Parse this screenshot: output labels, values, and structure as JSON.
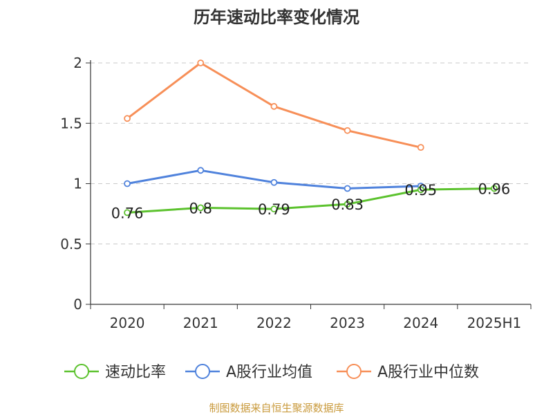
{
  "chart_data": {
    "type": "line",
    "title": "历年速动比率变化情况",
    "categories": [
      "2020",
      "2021",
      "2022",
      "2023",
      "2024",
      "2025H1"
    ],
    "ylim": [
      0,
      2
    ],
    "yticks": [
      "0",
      "0.5",
      "1",
      "1.5",
      "2"
    ],
    "grid": true,
    "legend_position": "bottom",
    "series": [
      {
        "name": "速动比率",
        "color": "#5cc22e",
        "values": [
          0.76,
          0.8,
          0.79,
          0.83,
          0.95,
          0.96
        ],
        "labels": [
          "0.76",
          "0.8",
          "0.79",
          "0.83",
          "0.95",
          "0.96"
        ]
      },
      {
        "name": "A股行业均值",
        "color": "#4f82dc",
        "values": [
          1.0,
          1.11,
          1.01,
          0.96,
          0.98,
          null
        ]
      },
      {
        "name": "A股行业中位数",
        "color": "#f78f58",
        "values": [
          1.54,
          2.0,
          1.64,
          1.44,
          1.3,
          null
        ]
      }
    ]
  },
  "source": "制图数据来自恒生聚源数据库"
}
